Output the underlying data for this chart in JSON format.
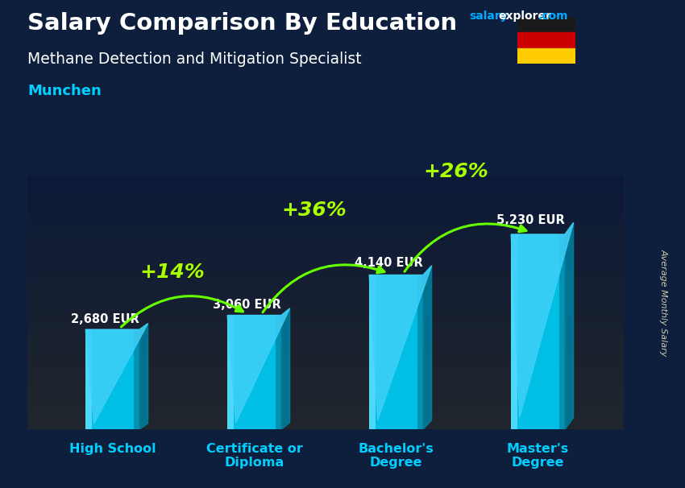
{
  "title": "Salary Comparison By Education",
  "subtitle": "Methane Detection and Mitigation Specialist",
  "city": "Munchen",
  "ylabel": "Average Monthly Salary",
  "categories": [
    "High School",
    "Certificate or\nDiploma",
    "Bachelor's\nDegree",
    "Master's\nDegree"
  ],
  "values": [
    2680,
    3060,
    4140,
    5230
  ],
  "value_labels": [
    "2,680 EUR",
    "3,060 EUR",
    "4,140 EUR",
    "5,230 EUR"
  ],
  "pct_labels": [
    "+14%",
    "+36%",
    "+26%"
  ],
  "bar_color_main": "#00C8F0",
  "bar_color_highlight": "#60E0FF",
  "bar_color_dark": "#0080A0",
  "arrow_color": "#66FF00",
  "pct_color": "#AAFF00",
  "bg_color": "#0d1f3c",
  "title_color": "#FFFFFF",
  "subtitle_color": "#FFFFFF",
  "city_color": "#00CFFF",
  "value_color": "#FFFFFF",
  "salary_label_color": "#CCCCAA",
  "brand_salary_color": "#00AAFF",
  "brand_explorer_color": "#FFFFFF",
  "brand_com_color": "#00AAFF",
  "xticklabel_color": "#00CFFF",
  "ylim": [
    0,
    6800
  ],
  "figsize": [
    8.5,
    6.06
  ],
  "dpi": 100
}
